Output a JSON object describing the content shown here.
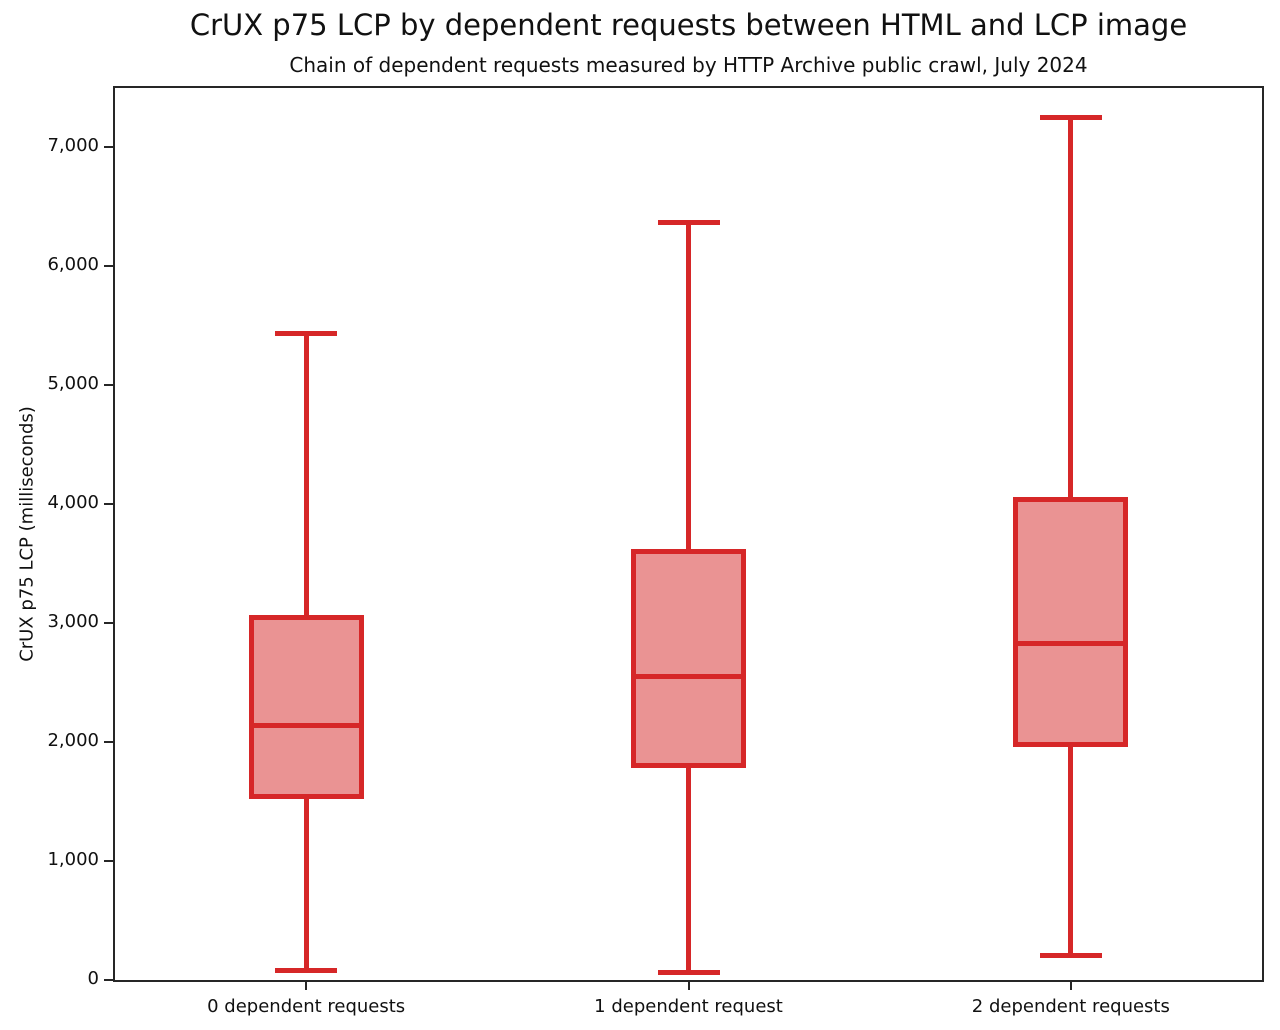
{
  "title": "CrUX p75 LCP by dependent requests between HTML and LCP image",
  "subtitle": "Chain of dependent requests measured by HTTP Archive public crawl, July 2024",
  "chart_data": {
    "type": "boxplot",
    "title": "CrUX p75 LCP by dependent requests between HTML and LCP image",
    "subtitle": "Chain of dependent requests measured by HTTP Archive public crawl, July 2024",
    "xlabel": "",
    "ylabel": "CrUX p75 LCP (milliseconds)",
    "ylim": [
      0,
      7500
    ],
    "grid": false,
    "legend": "none",
    "yticks": [
      {
        "value": 0,
        "label": "0"
      },
      {
        "value": 1000,
        "label": "1,000"
      },
      {
        "value": 2000,
        "label": "2,000"
      },
      {
        "value": 3000,
        "label": "3,000"
      },
      {
        "value": 4000,
        "label": "4,000"
      },
      {
        "value": 5000,
        "label": "5,000"
      },
      {
        "value": 6000,
        "label": "6,000"
      },
      {
        "value": 7000,
        "label": "7,000"
      }
    ],
    "categories": [
      "0 dependent requests",
      "1 dependent request",
      "2 dependent requests"
    ],
    "series": [
      {
        "category": "0 dependent requests",
        "whisker_low": 80,
        "q1": 1520,
        "median": 2140,
        "q3": 3070,
        "whisker_high": 5440
      },
      {
        "category": "1 dependent request",
        "whisker_low": 60,
        "q1": 1780,
        "median": 2550,
        "q3": 3620,
        "whisker_high": 6370
      },
      {
        "category": "2 dependent requests",
        "whisker_low": 210,
        "q1": 1960,
        "median": 2830,
        "q3": 4060,
        "whisker_high": 7250
      }
    ],
    "colors": {
      "box_edge": "#d62728",
      "box_fill": "rgba(214,39,40,0.5)",
      "spine": "#262626",
      "text": "#111111"
    }
  }
}
